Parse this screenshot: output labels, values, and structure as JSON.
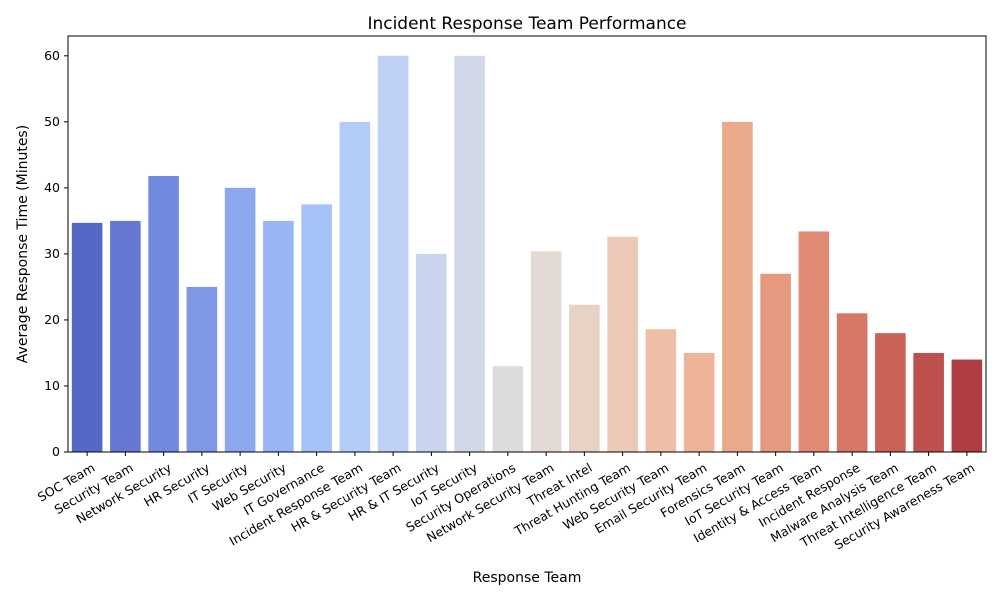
{
  "chart_data": {
    "type": "bar",
    "title": "Incident Response Team Performance",
    "xlabel": "Response Team",
    "ylabel": "Average Response Time (Minutes)",
    "ylim": [
      0,
      63
    ],
    "yticks": [
      0,
      10,
      20,
      30,
      40,
      50,
      60
    ],
    "grid": false,
    "legend": "none",
    "palette": "coolwarm",
    "categories": [
      "SOC Team",
      "Security Team",
      "Network Security",
      "HR Security",
      "IT Security",
      "Web Security",
      "IT Governance",
      "Incident Response Team",
      "HR & Security Team",
      "HR & IT Security",
      "IoT Security",
      "Security Operations",
      "Network Security Team",
      "Threat Intel",
      "Threat Hunting Team",
      "Web Security Team",
      "Email Security Team",
      "Forensics Team",
      "IoT Security Team",
      "Identity & Access Team",
      "Incident Response",
      "Malware Analysis Team",
      "Threat Intelligence Team",
      "Security Awareness Team"
    ],
    "values": [
      34.7,
      35,
      41.8,
      25,
      40,
      35,
      37.5,
      50,
      60,
      30,
      60,
      13,
      30.4,
      22.3,
      32.6,
      18.6,
      15,
      50,
      27,
      33.4,
      21,
      18,
      15,
      14
    ],
    "colors": [
      "#5468c8",
      "#6579d3",
      "#7189df",
      "#7e98e6",
      "#8ba8ee",
      "#98b5f5",
      "#a5c2f8",
      "#b3cdf8",
      "#bfd1f4",
      "#c9d4ee",
      "#d1d9e8",
      "#dbdcde",
      "#e3d9d5",
      "#e8d2c6",
      "#ecc9b6",
      "#eebfa6",
      "#edb497",
      "#eba98b",
      "#e59a7f",
      "#df8b73",
      "#d67665",
      "#ca6257",
      "#be514e",
      "#b03c44"
    ]
  }
}
